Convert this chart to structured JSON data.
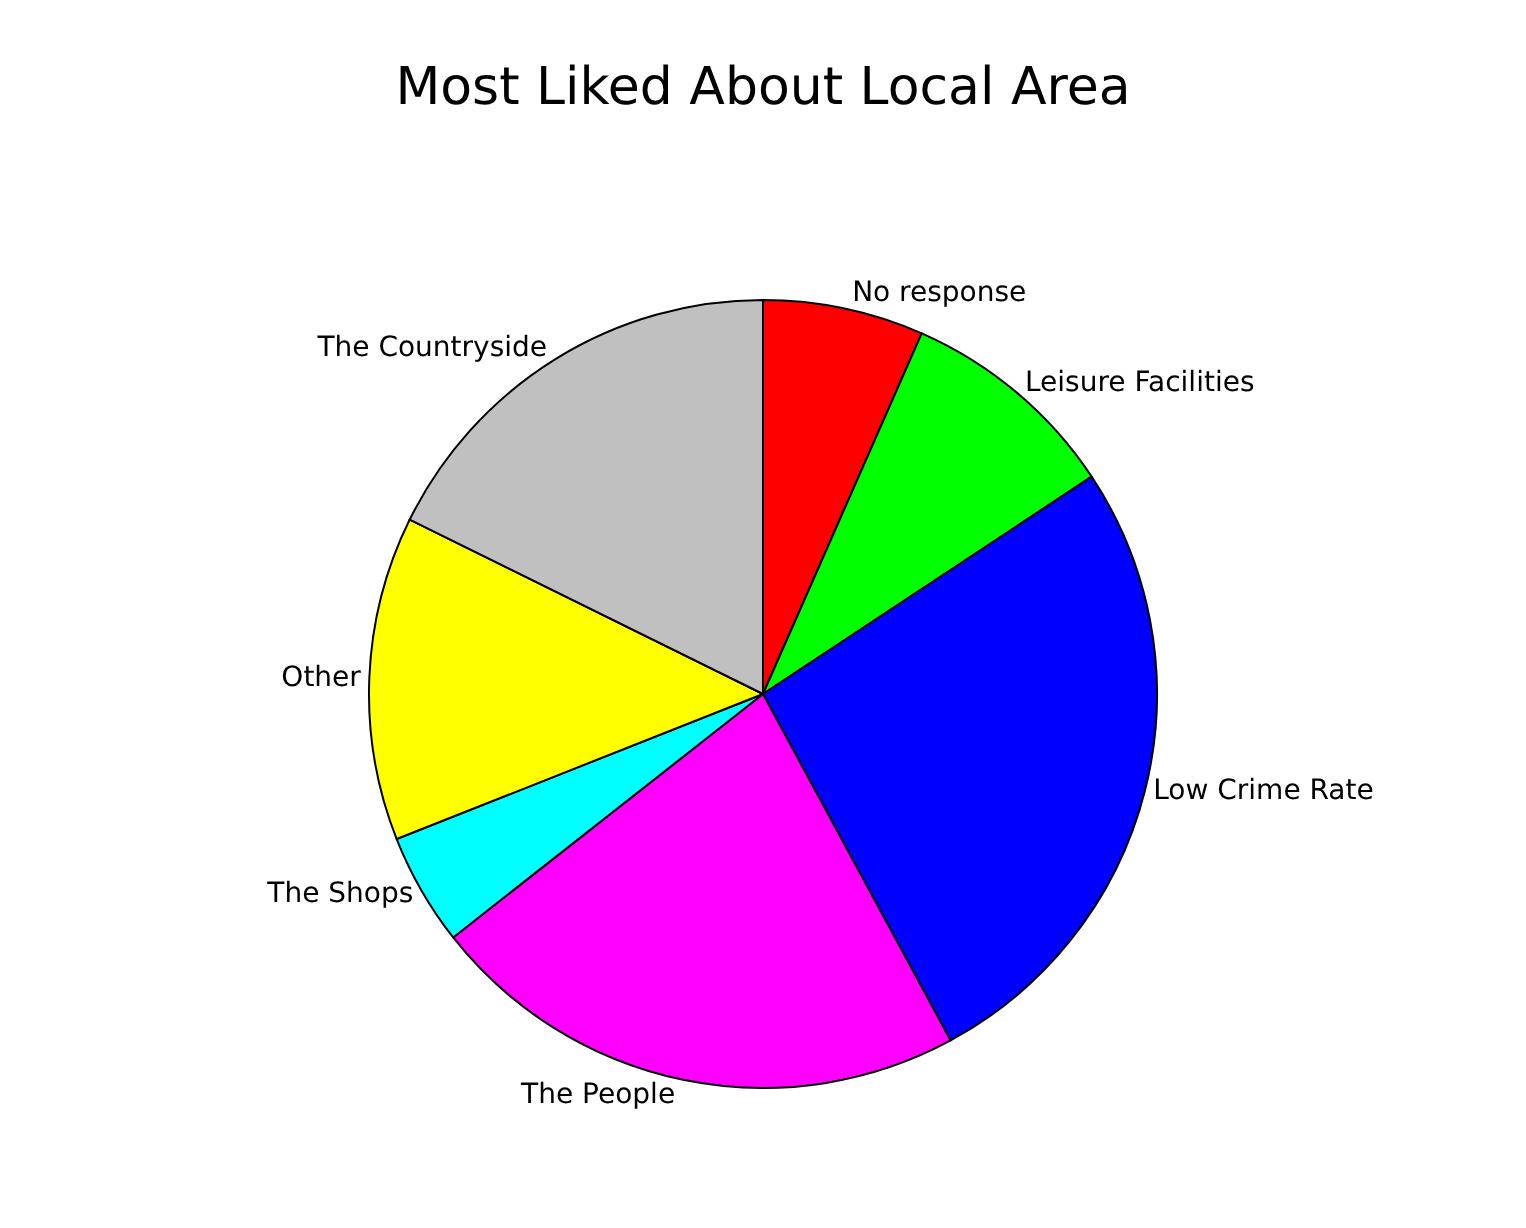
{
  "chart_data": {
    "type": "pie",
    "title": "Most Liked About Local Area",
    "categories": [
      "No response",
      "Leisure Facilities",
      "Low Crime Rate",
      "The People",
      "The Shops",
      "Other",
      "The Countryside"
    ],
    "values": [
      6.6,
      9.1,
      26.4,
      22.3,
      4.6,
      13.3,
      17.7
    ],
    "colors": [
      "#ff0000",
      "#00ff00",
      "#0000ff",
      "#ff00ff",
      "#00ffff",
      "#ffff00",
      "#c0c0c0"
    ],
    "legend": false
  }
}
